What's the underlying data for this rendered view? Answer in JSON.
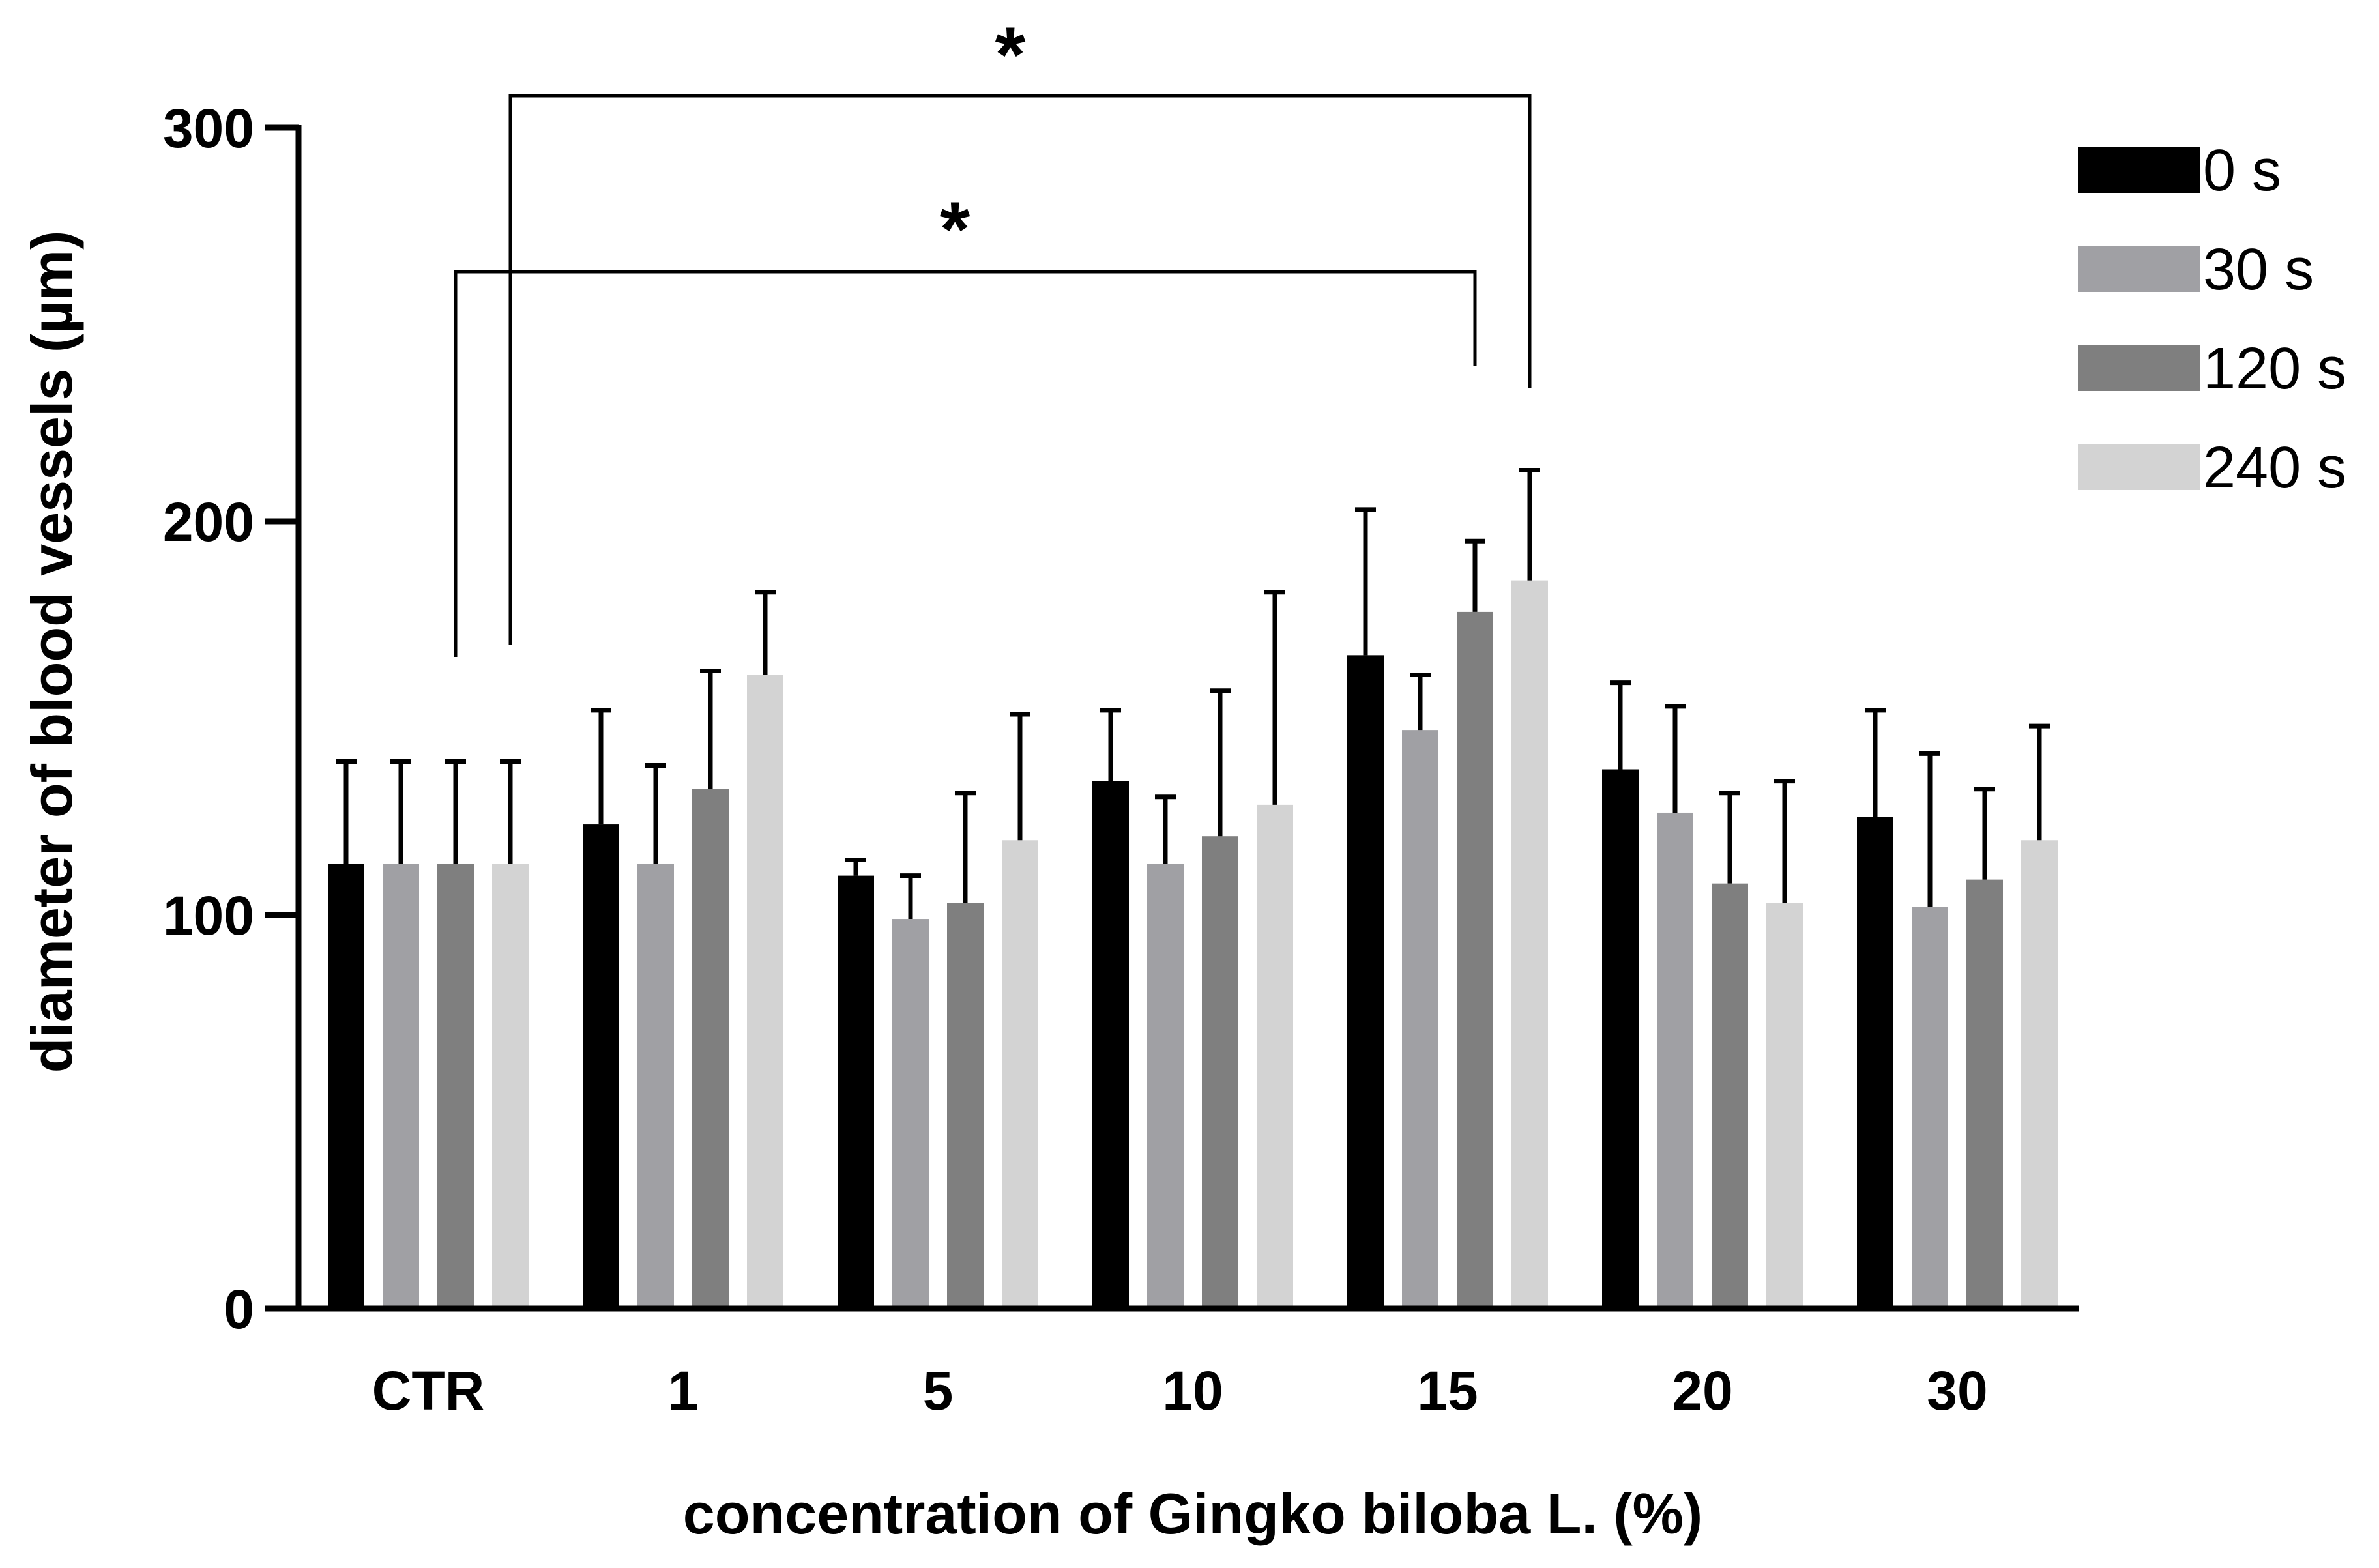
{
  "chart_data": {
    "type": "bar",
    "title": "",
    "xlabel": "concentration of Gingko biloba L. (%)",
    "ylabel": "diameter of blood vessels (µm)",
    "ylim": [
      0,
      300
    ],
    "yticks": [
      "0",
      "100",
      "200",
      "300"
    ],
    "yticks_values": [
      0,
      100,
      200,
      300
    ],
    "categories": [
      "CTR",
      "1",
      "5",
      "10",
      "15",
      "20",
      "30"
    ],
    "series": [
      {
        "name": "0 s",
        "color": "#000000",
        "values": [
          113,
          123,
          110,
          134,
          166,
          137,
          125
        ],
        "errors": [
          26,
          29,
          4,
          18,
          37,
          22,
          27
        ]
      },
      {
        "name": "30 s",
        "color": "#a0a0a4",
        "values": [
          113,
          113,
          99,
          113,
          147,
          126,
          102
        ],
        "errors": [
          26,
          25,
          11,
          17,
          14,
          27,
          39
        ]
      },
      {
        "name": "120 s",
        "color": "#7f7f7f",
        "values": [
          113,
          132,
          103,
          120,
          177,
          108,
          109
        ],
        "errors": [
          26,
          30,
          28,
          37,
          18,
          23,
          23
        ]
      },
      {
        "name": "240 s",
        "color": "#d3d3d3",
        "values": [
          113,
          161,
          119,
          128,
          185,
          103,
          119
        ],
        "errors": [
          26,
          21,
          32,
          54,
          28,
          31,
          29
        ]
      }
    ],
    "legend_position": "top-right",
    "significance": [
      {
        "from": "CTR 240 s",
        "to": "15 240 s",
        "label": "*"
      },
      {
        "from": "CTR 120 s",
        "to": "15 120 s",
        "label": "*"
      }
    ]
  }
}
